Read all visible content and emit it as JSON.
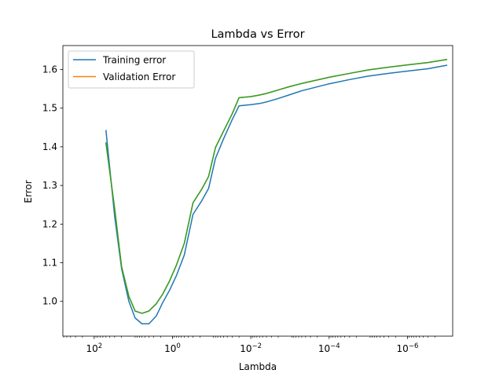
{
  "chart_data": {
    "type": "line",
    "title": "Lambda vs Error",
    "xlabel": "Lambda",
    "ylabel": "Error",
    "x_scale": "log",
    "x_reversed": true,
    "xlim": [
      630,
      7e-08
    ],
    "ylim": [
      0.91,
      1.662
    ],
    "grid": false,
    "legend_position": "top-left",
    "x_ticks": [
      {
        "value": 100,
        "label": "10",
        "exp": "2"
      },
      {
        "value": 1,
        "label": "10",
        "exp": "0"
      },
      {
        "value": 0.01,
        "label": "10",
        "exp": "−2"
      },
      {
        "value": 0.0001,
        "label": "10",
        "exp": "−4"
      },
      {
        "value": 1e-06,
        "label": "10",
        "exp": "−6"
      }
    ],
    "y_ticks": [
      {
        "value": 1.0,
        "label": "1.0"
      },
      {
        "value": 1.1,
        "label": "1.1"
      },
      {
        "value": 1.2,
        "label": "1.2"
      },
      {
        "value": 1.3,
        "label": "1.3"
      },
      {
        "value": 1.4,
        "label": "1.4"
      },
      {
        "value": 1.5,
        "label": "1.5"
      },
      {
        "value": 1.6,
        "label": "1.6"
      }
    ],
    "series": [
      {
        "name": "Training error",
        "color": "#1f77b4",
        "in_legend": true,
        "x": [
          50,
          30,
          20,
          13,
          9,
          6,
          4,
          2.6,
          1.8,
          1.2,
          0.8,
          0.5,
          0.3,
          0.18,
          0.12,
          0.08,
          0.05,
          0.03,
          0.02,
          0.01,
          0.006,
          0.004,
          0.002,
          0.001,
          0.0005,
          0.0001,
          3e-05,
          1e-05,
          3e-06,
          1e-06,
          3e-07,
          1e-07
        ],
        "y": [
          1.442,
          1.22,
          1.085,
          1.0,
          0.957,
          0.942,
          0.942,
          0.962,
          0.996,
          1.028,
          1.066,
          1.12,
          1.225,
          1.26,
          1.292,
          1.37,
          1.42,
          1.47,
          1.506,
          1.509,
          1.512,
          1.516,
          1.525,
          1.535,
          1.545,
          1.563,
          1.574,
          1.583,
          1.59,
          1.596,
          1.602,
          1.611
        ]
      },
      {
        "name": "Validation Error",
        "color": "#ff7f0e",
        "in_legend": true,
        "x": [
          50,
          30,
          20,
          13,
          9,
          6,
          4,
          2.6,
          1.8,
          1.2,
          0.8,
          0.5,
          0.3,
          0.18,
          0.12,
          0.08,
          0.05,
          0.03,
          0.02,
          0.01,
          0.006,
          0.004,
          0.002,
          0.001,
          0.0005,
          0.0001,
          3e-05,
          1e-05,
          3e-06,
          1e-06,
          3e-07,
          1e-07
        ],
        "y": [
          1.41,
          1.24,
          1.09,
          1.013,
          0.975,
          0.969,
          0.975,
          0.994,
          1.018,
          1.052,
          1.093,
          1.15,
          1.255,
          1.29,
          1.323,
          1.398,
          1.44,
          1.485,
          1.527,
          1.53,
          1.534,
          1.538,
          1.547,
          1.556,
          1.564,
          1.58,
          1.59,
          1.599,
          1.606,
          1.612,
          1.618,
          1.626
        ]
      },
      {
        "name": "",
        "color": "#2ca02c",
        "in_legend": false,
        "x": [
          50,
          30,
          20,
          13,
          9,
          6,
          4,
          2.6,
          1.8,
          1.2,
          0.8,
          0.5,
          0.3,
          0.18,
          0.12,
          0.08,
          0.05,
          0.03,
          0.02,
          0.01,
          0.006,
          0.004,
          0.002,
          0.001,
          0.0005,
          0.0001,
          3e-05,
          1e-05,
          3e-06,
          1e-06,
          3e-07,
          1e-07
        ],
        "y": [
          1.41,
          1.24,
          1.09,
          1.013,
          0.975,
          0.969,
          0.975,
          0.994,
          1.018,
          1.052,
          1.093,
          1.15,
          1.255,
          1.29,
          1.323,
          1.398,
          1.44,
          1.485,
          1.527,
          1.53,
          1.534,
          1.538,
          1.547,
          1.556,
          1.564,
          1.58,
          1.59,
          1.599,
          1.606,
          1.612,
          1.618,
          1.626
        ]
      }
    ]
  }
}
